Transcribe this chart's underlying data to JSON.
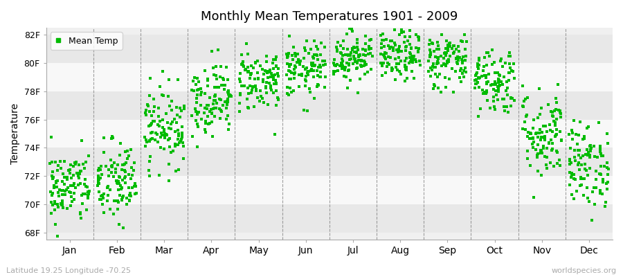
{
  "title": "Monthly Mean Temperatures 1901 - 2009",
  "ylabel": "Temperature",
  "ytick_labels": [
    "68F",
    "70F",
    "72F",
    "74F",
    "76F",
    "78F",
    "80F",
    "82F"
  ],
  "ytick_values": [
    68,
    70,
    72,
    74,
    76,
    78,
    80,
    82
  ],
  "ylim": [
    67.5,
    82.5
  ],
  "month_labels": [
    "Jan",
    "Feb",
    "Mar",
    "Apr",
    "May",
    "Jun",
    "Jul",
    "Aug",
    "Sep",
    "Oct",
    "Nov",
    "Dec"
  ],
  "dot_color": "#00bb00",
  "bg_color": "#ffffff",
  "plot_bg_color": "#f0f0f0",
  "stripe_light": "#f8f8f8",
  "stripe_dark": "#e8e8e8",
  "hgrid_color": "#ffffff",
  "legend_label": "Mean Temp",
  "footer_left": "Latitude 19.25 Longitude -70.25",
  "footer_right": "worldspecies.org",
  "n_years": 109,
  "seed": 42,
  "monthly_means": [
    71.2,
    71.5,
    75.5,
    77.5,
    78.8,
    79.5,
    80.5,
    80.5,
    80.2,
    78.8,
    75.0,
    72.8
  ],
  "monthly_stds": [
    1.3,
    1.5,
    1.4,
    1.3,
    1.1,
    1.0,
    0.9,
    0.9,
    1.0,
    1.2,
    1.6,
    1.5
  ]
}
